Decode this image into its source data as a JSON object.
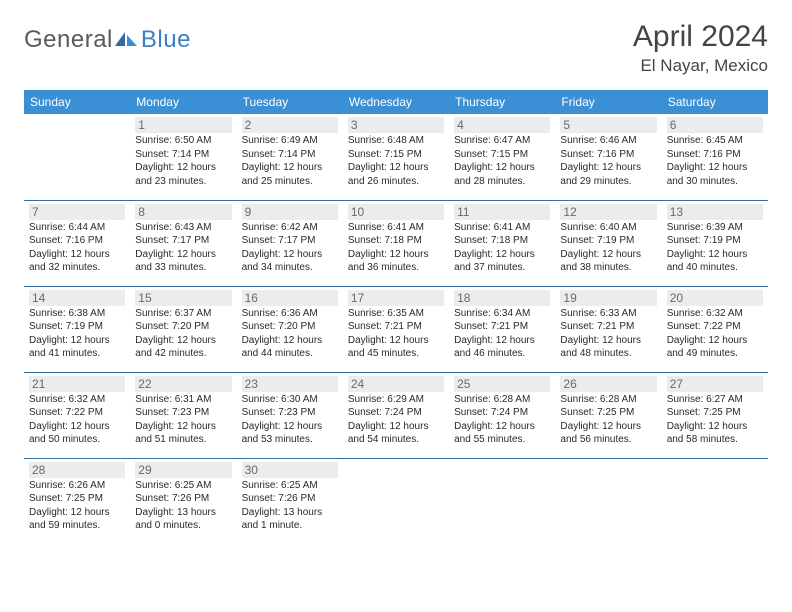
{
  "logo": {
    "text1": "General",
    "text2": "Blue"
  },
  "title": "April 2024",
  "location": "El Nayar, Mexico",
  "colors": {
    "header_bg": "#3b8fd4",
    "header_text": "#ffffff",
    "row_border": "#3b6fa0",
    "daynum_bg": "#ececec",
    "daynum_text": "#6a6a6a",
    "body_text": "#2a2a2a",
    "title_text": "#444444",
    "logo_gray": "#5a5a5a",
    "logo_blue": "#3b7fc4"
  },
  "headers": [
    "Sunday",
    "Monday",
    "Tuesday",
    "Wednesday",
    "Thursday",
    "Friday",
    "Saturday"
  ],
  "weeks": [
    [
      null,
      {
        "n": "1",
        "sr": "6:50 AM",
        "ss": "7:14 PM",
        "dl": "12 hours and 23 minutes."
      },
      {
        "n": "2",
        "sr": "6:49 AM",
        "ss": "7:14 PM",
        "dl": "12 hours and 25 minutes."
      },
      {
        "n": "3",
        "sr": "6:48 AM",
        "ss": "7:15 PM",
        "dl": "12 hours and 26 minutes."
      },
      {
        "n": "4",
        "sr": "6:47 AM",
        "ss": "7:15 PM",
        "dl": "12 hours and 28 minutes."
      },
      {
        "n": "5",
        "sr": "6:46 AM",
        "ss": "7:16 PM",
        "dl": "12 hours and 29 minutes."
      },
      {
        "n": "6",
        "sr": "6:45 AM",
        "ss": "7:16 PM",
        "dl": "12 hours and 30 minutes."
      }
    ],
    [
      {
        "n": "7",
        "sr": "6:44 AM",
        "ss": "7:16 PM",
        "dl": "12 hours and 32 minutes."
      },
      {
        "n": "8",
        "sr": "6:43 AM",
        "ss": "7:17 PM",
        "dl": "12 hours and 33 minutes."
      },
      {
        "n": "9",
        "sr": "6:42 AM",
        "ss": "7:17 PM",
        "dl": "12 hours and 34 minutes."
      },
      {
        "n": "10",
        "sr": "6:41 AM",
        "ss": "7:18 PM",
        "dl": "12 hours and 36 minutes."
      },
      {
        "n": "11",
        "sr": "6:41 AM",
        "ss": "7:18 PM",
        "dl": "12 hours and 37 minutes."
      },
      {
        "n": "12",
        "sr": "6:40 AM",
        "ss": "7:19 PM",
        "dl": "12 hours and 38 minutes."
      },
      {
        "n": "13",
        "sr": "6:39 AM",
        "ss": "7:19 PM",
        "dl": "12 hours and 40 minutes."
      }
    ],
    [
      {
        "n": "14",
        "sr": "6:38 AM",
        "ss": "7:19 PM",
        "dl": "12 hours and 41 minutes."
      },
      {
        "n": "15",
        "sr": "6:37 AM",
        "ss": "7:20 PM",
        "dl": "12 hours and 42 minutes."
      },
      {
        "n": "16",
        "sr": "6:36 AM",
        "ss": "7:20 PM",
        "dl": "12 hours and 44 minutes."
      },
      {
        "n": "17",
        "sr": "6:35 AM",
        "ss": "7:21 PM",
        "dl": "12 hours and 45 minutes."
      },
      {
        "n": "18",
        "sr": "6:34 AM",
        "ss": "7:21 PM",
        "dl": "12 hours and 46 minutes."
      },
      {
        "n": "19",
        "sr": "6:33 AM",
        "ss": "7:21 PM",
        "dl": "12 hours and 48 minutes."
      },
      {
        "n": "20",
        "sr": "6:32 AM",
        "ss": "7:22 PM",
        "dl": "12 hours and 49 minutes."
      }
    ],
    [
      {
        "n": "21",
        "sr": "6:32 AM",
        "ss": "7:22 PM",
        "dl": "12 hours and 50 minutes."
      },
      {
        "n": "22",
        "sr": "6:31 AM",
        "ss": "7:23 PM",
        "dl": "12 hours and 51 minutes."
      },
      {
        "n": "23",
        "sr": "6:30 AM",
        "ss": "7:23 PM",
        "dl": "12 hours and 53 minutes."
      },
      {
        "n": "24",
        "sr": "6:29 AM",
        "ss": "7:24 PM",
        "dl": "12 hours and 54 minutes."
      },
      {
        "n": "25",
        "sr": "6:28 AM",
        "ss": "7:24 PM",
        "dl": "12 hours and 55 minutes."
      },
      {
        "n": "26",
        "sr": "6:28 AM",
        "ss": "7:25 PM",
        "dl": "12 hours and 56 minutes."
      },
      {
        "n": "27",
        "sr": "6:27 AM",
        "ss": "7:25 PM",
        "dl": "12 hours and 58 minutes."
      }
    ],
    [
      {
        "n": "28",
        "sr": "6:26 AM",
        "ss": "7:25 PM",
        "dl": "12 hours and 59 minutes."
      },
      {
        "n": "29",
        "sr": "6:25 AM",
        "ss": "7:26 PM",
        "dl": "13 hours and 0 minutes."
      },
      {
        "n": "30",
        "sr": "6:25 AM",
        "ss": "7:26 PM",
        "dl": "13 hours and 1 minute."
      },
      null,
      null,
      null,
      null
    ]
  ],
  "labels": {
    "sunrise": "Sunrise:",
    "sunset": "Sunset:",
    "daylight": "Daylight:"
  }
}
